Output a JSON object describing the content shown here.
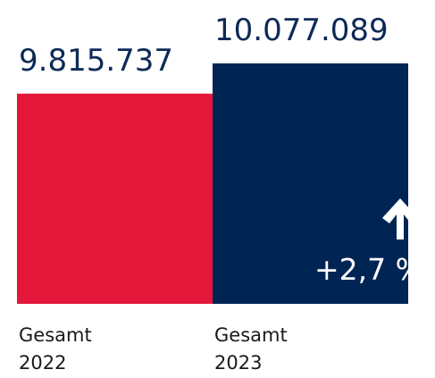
{
  "chart_data": {
    "type": "bar",
    "categories": [
      "Gesamt 2022",
      "Gesamt 2023"
    ],
    "values": [
      9815737,
      10077089
    ],
    "value_labels": [
      "9.815.737",
      "10.077.089"
    ],
    "colors": [
      "#e4163a",
      "#002554"
    ],
    "ylim": [
      8000000,
      10200000
    ],
    "annotation": "+2,7 %"
  }
}
